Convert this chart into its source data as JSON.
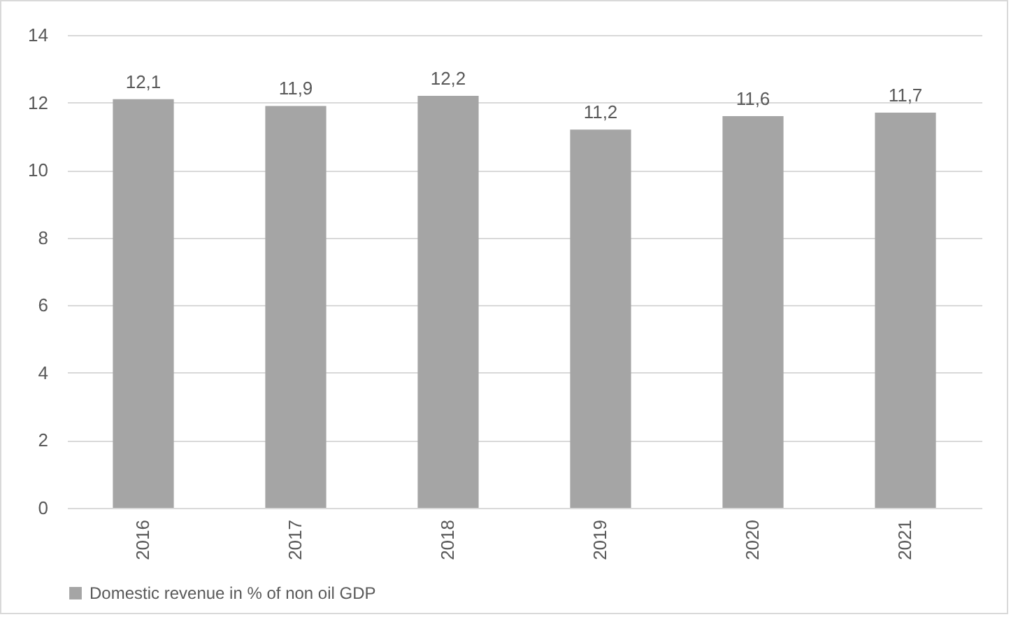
{
  "chart_data": {
    "type": "bar",
    "categories": [
      "2016",
      "2017",
      "2018",
      "2019",
      "2020",
      "2021"
    ],
    "series": [
      {
        "name": "Domestic revenue in % of non oil GDP",
        "color": "#a5a5a5",
        "values": [
          12.1,
          11.9,
          12.2,
          11.2,
          11.6,
          11.7
        ],
        "value_labels": [
          "12,1",
          "11,9",
          "12,2",
          "11,2",
          "11,6",
          "11,7"
        ]
      }
    ],
    "ylim": [
      0,
      14
    ],
    "yticks": [
      0,
      2,
      4,
      6,
      8,
      10,
      12,
      14
    ],
    "grid": "y",
    "legend": "bottom"
  }
}
